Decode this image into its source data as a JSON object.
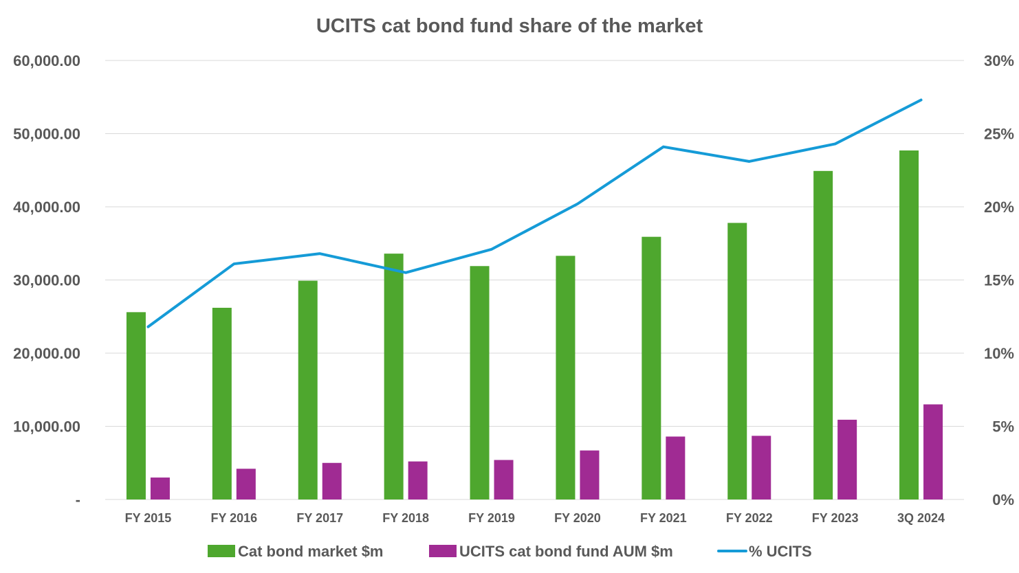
{
  "chart_data": {
    "type": "bar",
    "title": "UCITS cat bond fund share of the market",
    "categories": [
      "FY 2015",
      "FY 2016",
      "FY 2017",
      "FY 2018",
      "FY 2019",
      "FY 2020",
      "FY 2021",
      "FY 2022",
      "FY 2023",
      "3Q 2024"
    ],
    "series": [
      {
        "name": "Cat bond market $m",
        "kind": "bar",
        "axis": "left",
        "color": "#4ea72e",
        "values": [
          25600,
          26200,
          29900,
          33600,
          31900,
          33300,
          35900,
          37800,
          44900,
          47700
        ]
      },
      {
        "name": "UCITS cat bond fund AUM $m",
        "kind": "bar",
        "axis": "left",
        "color": "#a02b93",
        "values": [
          3000,
          4200,
          5000,
          5200,
          5400,
          6700,
          8600,
          8700,
          10900,
          13000
        ]
      },
      {
        "name": "% UCITS",
        "kind": "line",
        "axis": "right",
        "color": "#159bd7",
        "values": [
          0.118,
          0.161,
          0.168,
          0.155,
          0.171,
          0.202,
          0.241,
          0.231,
          0.243,
          0.273
        ]
      }
    ],
    "y_left": {
      "min": 0,
      "max": 60000,
      "ticks": [
        0,
        10000,
        20000,
        30000,
        40000,
        50000,
        60000
      ],
      "tick_labels": [
        "-",
        "10,000.00",
        "20,000.00",
        "30,000.00",
        "40,000.00",
        "50,000.00",
        "60,000.00"
      ]
    },
    "y_right": {
      "min": 0,
      "max": 0.3,
      "ticks": [
        0,
        0.05,
        0.1,
        0.15,
        0.2,
        0.25,
        0.3
      ],
      "tick_labels": [
        "0%",
        "5%",
        "10%",
        "15%",
        "20%",
        "25%",
        "30%"
      ]
    },
    "grid": true,
    "legend_position": "bottom"
  }
}
